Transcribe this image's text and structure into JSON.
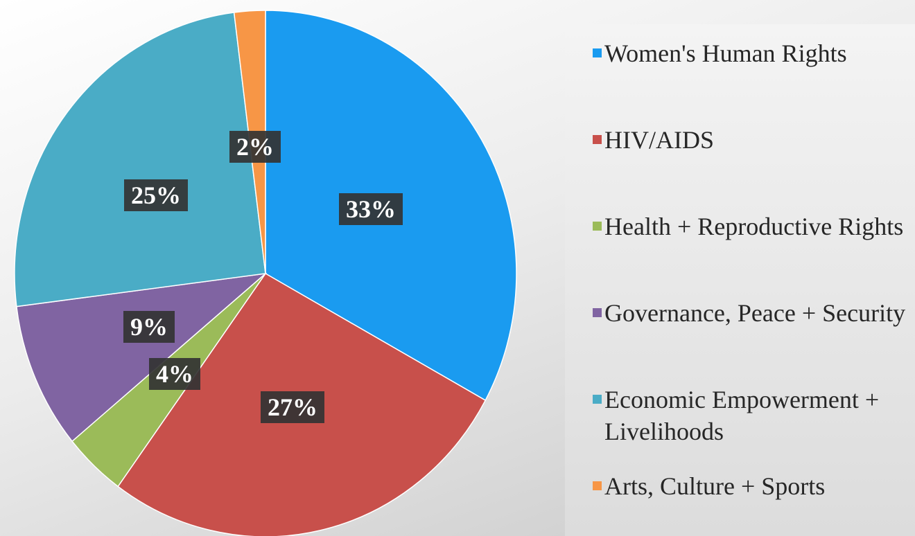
{
  "chart_data": {
    "type": "pie",
    "categories": [
      "Women's Human Rights",
      "HIV/AIDS",
      "Health + Reproductive Rights",
      "Governance, Peace + Security",
      "Economic Empowerment + Livelihoods",
      "Arts, Culture + Sports"
    ],
    "values": [
      33,
      27,
      4,
      9,
      25,
      2
    ],
    "value_labels": [
      "33%",
      "27%",
      "4%",
      "9%",
      "25%",
      "2%"
    ],
    "colors": [
      "#1a9bf0",
      "#c8504b",
      "#9bbb59",
      "#8064a2",
      "#4aacc6",
      "#f79646"
    ],
    "legend": "right"
  }
}
